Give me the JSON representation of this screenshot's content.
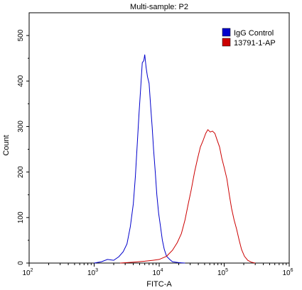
{
  "chart_data": {
    "type": "line",
    "title": "Multi-sample: P2",
    "xlabel": "FITC-A",
    "ylabel": "Count",
    "x_scale": "log",
    "xlim": [
      100,
      1000000
    ],
    "ylim": [
      0,
      550
    ],
    "x_ticks": [
      100,
      1000,
      10000,
      100000,
      1000000
    ],
    "x_tick_labels": [
      {
        "base": "10",
        "exp": "2"
      },
      {
        "base": "10",
        "exp": "3"
      },
      {
        "base": "10",
        "exp": "4"
      },
      {
        "base": "10",
        "exp": "5"
      },
      {
        "base": "10",
        "exp": "6"
      }
    ],
    "y_ticks": [
      0,
      100,
      200,
      300,
      400,
      500
    ],
    "y_tick_labels": [
      "0",
      "100",
      "200",
      "300",
      "400",
      "500"
    ],
    "legend_position": "top-right",
    "grid": false,
    "series": [
      {
        "name": "IgG Control",
        "color": "#0000cc",
        "points": [
          [
            1000,
            0
          ],
          [
            1300,
            3
          ],
          [
            1600,
            8
          ],
          [
            2000,
            6
          ],
          [
            2400,
            14
          ],
          [
            2800,
            25
          ],
          [
            3200,
            42
          ],
          [
            3600,
            80
          ],
          [
            4000,
            130
          ],
          [
            4300,
            190
          ],
          [
            4600,
            260
          ],
          [
            4900,
            330
          ],
          [
            5200,
            385
          ],
          [
            5500,
            440
          ],
          [
            5800,
            445
          ],
          [
            6000,
            458
          ],
          [
            6300,
            430
          ],
          [
            6600,
            410
          ],
          [
            7000,
            395
          ],
          [
            7400,
            345
          ],
          [
            7800,
            300
          ],
          [
            8200,
            250
          ],
          [
            8700,
            200
          ],
          [
            9200,
            150
          ],
          [
            9800,
            110
          ],
          [
            10500,
            80
          ],
          [
            11200,
            50
          ],
          [
            12000,
            30
          ],
          [
            13000,
            15
          ],
          [
            14500,
            8
          ],
          [
            16000,
            3
          ],
          [
            20000,
            1
          ],
          [
            25000,
            0
          ]
        ]
      },
      {
        "name": "13791-1-AP",
        "color": "#cc0000",
        "points": [
          [
            2500,
            0
          ],
          [
            4000,
            2
          ],
          [
            6000,
            4
          ],
          [
            8000,
            6
          ],
          [
            10000,
            8
          ],
          [
            13000,
            15
          ],
          [
            16000,
            28
          ],
          [
            19000,
            45
          ],
          [
            22000,
            65
          ],
          [
            25000,
            95
          ],
          [
            28000,
            130
          ],
          [
            31000,
            160
          ],
          [
            35000,
            200
          ],
          [
            39000,
            230
          ],
          [
            43000,
            255
          ],
          [
            47000,
            268
          ],
          [
            52000,
            285
          ],
          [
            56000,
            293
          ],
          [
            61000,
            288
          ],
          [
            66000,
            290
          ],
          [
            72000,
            285
          ],
          [
            78000,
            270
          ],
          [
            85000,
            255
          ],
          [
            92000,
            230
          ],
          [
            100000,
            210
          ],
          [
            110000,
            185
          ],
          [
            120000,
            150
          ],
          [
            130000,
            120
          ],
          [
            142000,
            95
          ],
          [
            155000,
            75
          ],
          [
            170000,
            50
          ],
          [
            185000,
            30
          ],
          [
            205000,
            15
          ],
          [
            230000,
            6
          ],
          [
            260000,
            2
          ],
          [
            300000,
            0
          ]
        ]
      }
    ]
  }
}
